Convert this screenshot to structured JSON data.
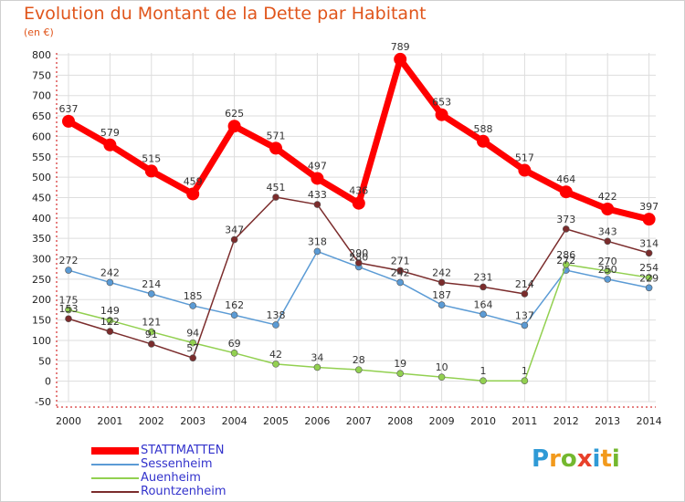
{
  "title": "Evolution du Montant de la Dette par Habitant",
  "subtitle": "(en €)",
  "logo": {
    "letters": [
      {
        "ch": "P",
        "color": "#2f9ad6"
      },
      {
        "ch": "r",
        "color": "#f29a1c"
      },
      {
        "ch": "o",
        "color": "#74b82f"
      },
      {
        "ch": "x",
        "color": "#e8402a"
      },
      {
        "ch": "i",
        "color": "#2f9ad6"
      },
      {
        "ch": "t",
        "color": "#f29a1c"
      },
      {
        "ch": "i",
        "color": "#74b82f"
      }
    ]
  },
  "chart_data": {
    "type": "line",
    "x": [
      "2000",
      "2001",
      "2002",
      "2003",
      "2004",
      "2005",
      "2006",
      "2007",
      "2008",
      "2009",
      "2010",
      "2011",
      "2012",
      "2013",
      "2014"
    ],
    "ylim": [
      -50,
      800
    ],
    "yticks": [
      -50,
      0,
      50,
      100,
      150,
      200,
      250,
      300,
      350,
      400,
      450,
      500,
      550,
      600,
      650,
      700,
      750,
      800
    ],
    "grid": true,
    "legend": "bottom-left",
    "series": [
      {
        "name": "STATTMATTEN",
        "color": "#ff0000",
        "width": 7,
        "marker": 7,
        "values": [
          637,
          579,
          515,
          459,
          625,
          571,
          497,
          436,
          789,
          653,
          588,
          517,
          464,
          422,
          397
        ]
      },
      {
        "name": "Sessenheim",
        "color": "#5b9bd5",
        "width": 1.5,
        "marker": 3.5,
        "values": [
          272,
          242,
          214,
          185,
          162,
          138,
          318,
          280,
          242,
          187,
          164,
          137,
          272,
          250,
          229
        ]
      },
      {
        "name": "Auenheim",
        "color": "#92d050",
        "width": 1.5,
        "marker": 3.5,
        "values": [
          175,
          149,
          121,
          94,
          69,
          42,
          34,
          28,
          19,
          10,
          1,
          1,
          286,
          270,
          254
        ]
      },
      {
        "name": "Rountzenheim",
        "color": "#7b2c2c",
        "width": 1.5,
        "marker": 3.5,
        "values": [
          153,
          122,
          91,
          57,
          347,
          451,
          433,
          290,
          271,
          242,
          231,
          214,
          373,
          343,
          314
        ]
      }
    ]
  }
}
